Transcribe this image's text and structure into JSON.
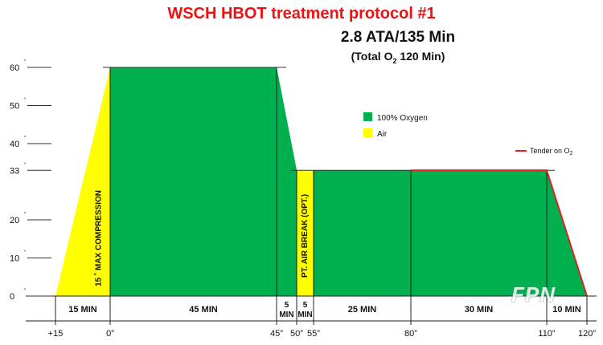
{
  "title": "WSCH HBOT treatment protocol #1",
  "subtitle": "2.8 ATA/135 Min",
  "subtitle2_prefix": "(Total O",
  "subtitle2_sub": "2",
  "subtitle2_suffix": " 120 Min)",
  "watermark": "FPN",
  "colors": {
    "oxygen": "#00b04f",
    "air": "#ffff00",
    "tender": "#e02020",
    "title": "#ee1111"
  },
  "chart_data": {
    "type": "area",
    "title": "WSCH HBOT treatment protocol #1",
    "ylim": [
      0,
      60
    ],
    "y_ticks": [
      {
        "value": 0,
        "label": "0"
      },
      {
        "value": 10,
        "label": "10"
      },
      {
        "value": 20,
        "label": "20"
      },
      {
        "value": 33,
        "label": "33"
      },
      {
        "value": 40,
        "label": "40"
      },
      {
        "value": 50,
        "label": "50"
      },
      {
        "value": 60,
        "label": "60"
      }
    ],
    "x_ticks": [
      {
        "value": -15,
        "label": "+15"
      },
      {
        "value": 0,
        "label": "0”"
      },
      {
        "value": 45,
        "label": "45”"
      },
      {
        "value": 50,
        "label": "50”"
      },
      {
        "value": 55,
        "label": "55”"
      },
      {
        "value": 80,
        "label": "80”"
      },
      {
        "value": 110,
        "label": "110”"
      },
      {
        "value": 120,
        "label": "120”"
      }
    ],
    "segments": [
      {
        "type": "air",
        "points": [
          [
            -15,
            0
          ],
          [
            0,
            60
          ],
          [
            0,
            0
          ]
        ],
        "label": "15 ˚ MAX COMPRESSION",
        "duration": "15 MIN"
      },
      {
        "type": "oxygen",
        "points": [
          [
            0,
            0
          ],
          [
            0,
            60
          ],
          [
            45,
            60
          ],
          [
            50,
            33
          ],
          [
            50,
            0
          ]
        ],
        "label": "",
        "duration": "45 MIN"
      },
      {
        "type": "oxygen",
        "points": [
          [
            45,
            60
          ],
          [
            50,
            33
          ],
          [
            50,
            0
          ],
          [
            45,
            0
          ]
        ],
        "label": "",
        "duration": "5 MIN"
      },
      {
        "type": "air",
        "points": [
          [
            50,
            0
          ],
          [
            50,
            33
          ],
          [
            55,
            33
          ],
          [
            55,
            0
          ]
        ],
        "label": "PT. AIR BREAK (OPT.)",
        "duration": "5 MIN"
      },
      {
        "type": "oxygen",
        "points": [
          [
            55,
            0
          ],
          [
            55,
            33
          ],
          [
            80,
            33
          ],
          [
            80,
            0
          ]
        ],
        "label": "",
        "duration": "25 MIN"
      },
      {
        "type": "oxygen",
        "points": [
          [
            80,
            0
          ],
          [
            80,
            33
          ],
          [
            110,
            33
          ],
          [
            110,
            0
          ]
        ],
        "label": "",
        "duration": "30 MIN"
      },
      {
        "type": "oxygen",
        "points": [
          [
            110,
            0
          ],
          [
            110,
            33
          ],
          [
            120,
            0
          ]
        ],
        "label": "",
        "duration": "10 MIN"
      }
    ],
    "legend": [
      {
        "name": "100% Oxygen",
        "color": "#00b04f"
      },
      {
        "name": "Air",
        "color": "#ffff00"
      }
    ],
    "tender_legend": {
      "prefix": "Tender on O",
      "sub": "2"
    },
    "tender_line": [
      [
        80,
        33
      ],
      [
        110,
        33
      ],
      [
        120,
        0
      ]
    ]
  }
}
